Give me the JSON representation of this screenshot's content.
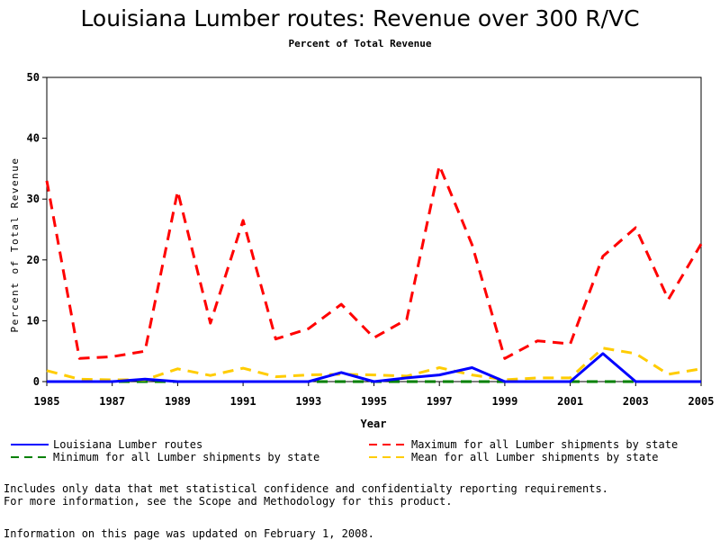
{
  "chart_data": {
    "type": "line",
    "title": "Louisiana Lumber routes: Revenue over 300 R/VC",
    "subtitle": "Percent of Total Revenue",
    "xlabel": "Year",
    "ylabel": "Percent of Total Revenue",
    "xlim": [
      1985,
      2005
    ],
    "ylim": [
      0,
      50
    ],
    "x_ticks": [
      "1985",
      "1987",
      "1989",
      "1991",
      "1993",
      "1995",
      "1997",
      "1999",
      "2001",
      "2003",
      "2005"
    ],
    "y_ticks": [
      "0",
      "10",
      "20",
      "30",
      "40",
      "50"
    ],
    "x": [
      1985,
      1986,
      1987,
      1988,
      1989,
      1990,
      1991,
      1992,
      1993,
      1994,
      1995,
      1996,
      1997,
      1998,
      1999,
      2000,
      2001,
      2002,
      2003,
      2004,
      2005
    ],
    "series": [
      {
        "name": "Louisiana Lumber routes",
        "color": "#0000ff",
        "style": "solid",
        "values": [
          0,
          0,
          0,
          0.4,
          0,
          0,
          0,
          0,
          0,
          1.5,
          0,
          0.6,
          1.1,
          2.3,
          0,
          0,
          0,
          4.6,
          0,
          0,
          0
        ]
      },
      {
        "name": "Maximum for all Lumber shipments by state",
        "color": "#ff0000",
        "style": "dashed",
        "values": [
          33,
          3.8,
          4.1,
          5,
          31.3,
          9.6,
          26.5,
          7,
          8.7,
          12.7,
          7.2,
          10.2,
          35.5,
          22.5,
          3.8,
          6.7,
          6.2,
          20.6,
          25.3,
          13.5,
          22.6
        ]
      },
      {
        "name": "Minimum for all Lumber shipments by state",
        "color": "#008000",
        "style": "dashed",
        "values": [
          0,
          0,
          0,
          0,
          0,
          0,
          0,
          0,
          0,
          0,
          0,
          0,
          0,
          0,
          0,
          0,
          0,
          0,
          0,
          0,
          0
        ]
      },
      {
        "name": "Mean for all Lumber shipments by state",
        "color": "#ffcc00",
        "style": "dashed",
        "values": [
          1.8,
          0.4,
          0.3,
          0.3,
          2.1,
          1.0,
          2.2,
          0.8,
          1.1,
          1.2,
          1.1,
          0.9,
          2.3,
          1.1,
          0.3,
          0.6,
          0.6,
          5.5,
          4.6,
          1.2,
          2.1
        ]
      }
    ],
    "legend": "bottom",
    "grid": false
  },
  "notes": [
    "Includes only data that met statistical confidence and confidentialty reporting requirements.",
    "For more information, see the Scope and Methodology for this product."
  ],
  "updated": "Information on this page was updated on February 1, 2008."
}
